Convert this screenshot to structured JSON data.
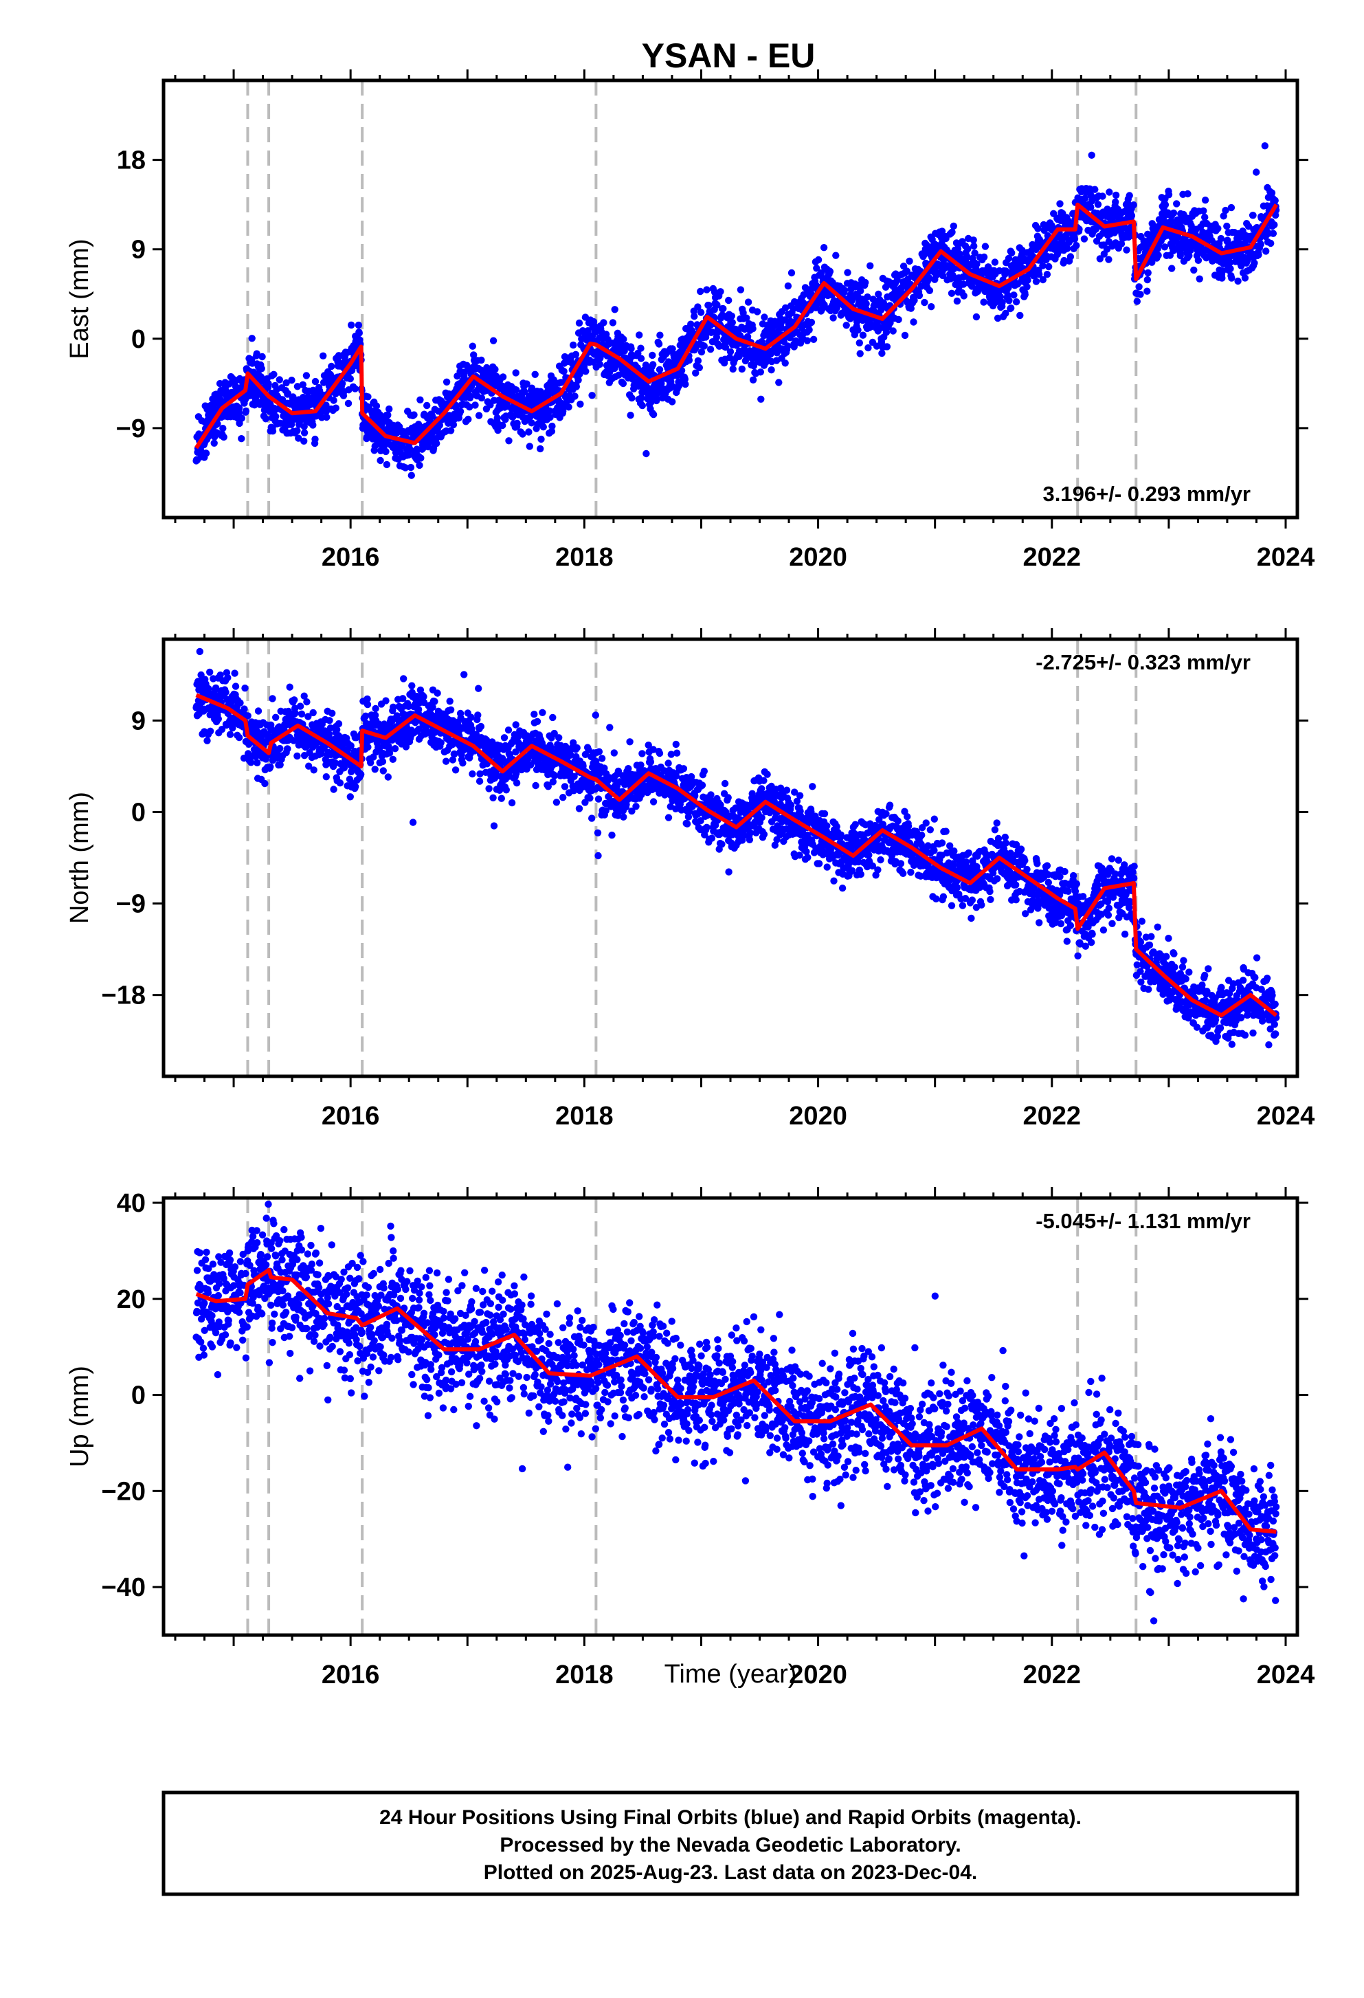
{
  "title": "YSAN - EU",
  "colors": {
    "final_orbits": "#0000ff",
    "model": "#ff0000",
    "offsets": "#bbbbbb",
    "frame": "#000000"
  },
  "footer": {
    "line1": "24 Hour Positions Using Final Orbits (blue) and Rapid Orbits (magenta).",
    "line2": "Processed by the Nevada Geodetic Laboratory.",
    "line3": "Plotted on 2025-Aug-23. Last data on 2023-Dec-04."
  },
  "chart_data": [
    {
      "type": "scatter",
      "title": "YSAN - EU",
      "ylabel": "East (mm)",
      "xlabel": "",
      "rate": "3.196+/- 0.293 mm/yr",
      "xlim": [
        2014.4,
        2024.1
      ],
      "ylim": [
        -18,
        26
      ],
      "xticks": [
        2016,
        2018,
        2020,
        2022,
        2024
      ],
      "yticks": [
        -9,
        0,
        9,
        18
      ],
      "offsets": [
        2015.12,
        2015.3,
        2016.1,
        2018.1,
        2022.22,
        2022.72
      ],
      "series": [
        {
          "name": "Final Orbits",
          "x_range": [
            2014.68,
            2023.92
          ],
          "trend_start": -11.5,
          "trend_rate": 3.196,
          "seasonal_amp": 2.8,
          "noise": 1.5
        }
      ],
      "model": {
        "x": [
          2014.68,
          2014.9,
          2015.1,
          2015.12,
          2015.3,
          2015.5,
          2015.7,
          2016.0,
          2016.09,
          2016.1,
          2016.3,
          2016.55,
          2016.8,
          2017.05,
          2017.3,
          2017.55,
          2017.8,
          2018.05,
          2018.1,
          2018.3,
          2018.55,
          2018.8,
          2019.05,
          2019.3,
          2019.55,
          2019.8,
          2020.05,
          2020.3,
          2020.55,
          2020.8,
          2021.05,
          2021.3,
          2021.55,
          2021.8,
          2022.05,
          2022.2,
          2022.22,
          2022.45,
          2022.7,
          2022.72,
          2022.95,
          2023.2,
          2023.45,
          2023.7,
          2023.92
        ],
        "values": [
          -11.0,
          -7.0,
          -5.2,
          -3.5,
          -5.8,
          -7.5,
          -7.3,
          -2.5,
          -0.8,
          -7.5,
          -9.8,
          -10.5,
          -7.5,
          -3.8,
          -5.8,
          -7.3,
          -5.5,
          -0.5,
          -0.6,
          -2.0,
          -4.3,
          -3.0,
          2.2,
          0.0,
          -1.0,
          1.2,
          5.6,
          3.0,
          2.0,
          5.0,
          8.8,
          6.5,
          5.3,
          7.0,
          11.0,
          11.0,
          13.5,
          11.3,
          11.8,
          6.0,
          11.2,
          10.3,
          8.6,
          9.2,
          13.5
        ]
      }
    },
    {
      "type": "scatter",
      "title": "",
      "ylabel": "North (mm)",
      "xlabel": "",
      "rate": "-2.725+/- 0.323 mm/yr",
      "xlim": [
        2014.4,
        2024.1
      ],
      "ylim": [
        -26,
        17
      ],
      "xticks": [
        2016,
        2018,
        2020,
        2022,
        2024
      ],
      "yticks": [
        -18,
        -9,
        0,
        9
      ],
      "offsets": [
        2015.12,
        2015.3,
        2016.1,
        2018.1,
        2022.22,
        2022.72
      ],
      "series": [
        {
          "name": "Final Orbits",
          "x_range": [
            2014.68,
            2023.92
          ],
          "trend_start": 12.0,
          "trend_rate": -2.725,
          "seasonal_amp": 1.6,
          "noise": 1.4
        }
      ],
      "model": {
        "x": [
          2014.68,
          2014.95,
          2015.1,
          2015.12,
          2015.3,
          2015.32,
          2015.55,
          2015.8,
          2016.09,
          2016.1,
          2016.3,
          2016.55,
          2016.8,
          2017.05,
          2017.3,
          2017.55,
          2017.8,
          2018.05,
          2018.1,
          2018.3,
          2018.55,
          2018.8,
          2019.05,
          2019.3,
          2019.55,
          2019.8,
          2020.05,
          2020.3,
          2020.55,
          2020.8,
          2021.05,
          2021.3,
          2021.55,
          2021.8,
          2022.05,
          2022.2,
          2022.22,
          2022.45,
          2022.7,
          2022.72,
          2022.95,
          2023.2,
          2023.45,
          2023.7,
          2023.92
        ],
        "values": [
          11.5,
          10.2,
          9.0,
          7.5,
          5.8,
          6.8,
          8.5,
          6.8,
          4.5,
          8.0,
          7.3,
          9.5,
          8.0,
          6.5,
          4.0,
          6.5,
          5.0,
          3.4,
          3.2,
          1.2,
          3.8,
          2.3,
          0.2,
          -1.5,
          1.0,
          -0.8,
          -2.5,
          -4.3,
          -1.8,
          -3.5,
          -5.5,
          -7.0,
          -4.5,
          -6.5,
          -8.5,
          -9.5,
          -11.5,
          -7.5,
          -7.0,
          -13.5,
          -16.0,
          -18.5,
          -20.0,
          -18.0,
          -20.0
        ]
      }
    },
    {
      "type": "scatter",
      "title": "",
      "ylabel": "Up (mm)",
      "xlabel": "Time (year)",
      "rate": "-5.045+/- 1.131 mm/yr",
      "xlim": [
        2014.4,
        2024.1
      ],
      "ylim": [
        -50,
        41
      ],
      "xticks": [
        2016,
        2018,
        2020,
        2022,
        2024
      ],
      "yticks": [
        -40,
        -20,
        0,
        20,
        40
      ],
      "offsets": [
        2015.12,
        2015.3,
        2016.1,
        2018.1,
        2022.22,
        2022.72
      ],
      "series": [
        {
          "name": "Final Orbits",
          "x_range": [
            2014.68,
            2023.92
          ],
          "trend_start": 21.0,
          "trend_rate": -5.045,
          "seasonal_amp": 3.0,
          "noise": 6.0
        }
      ],
      "model": {
        "x": [
          2014.68,
          2014.85,
          2015.1,
          2015.12,
          2015.3,
          2015.32,
          2015.5,
          2015.8,
          2016.05,
          2016.1,
          2016.4,
          2016.8,
          2017.1,
          2017.4,
          2017.7,
          2018.05,
          2018.1,
          2018.45,
          2018.8,
          2019.1,
          2019.45,
          2019.8,
          2020.1,
          2020.45,
          2020.8,
          2021.1,
          2021.4,
          2021.7,
          2022.05,
          2022.2,
          2022.22,
          2022.45,
          2022.7,
          2022.72,
          2023.1,
          2023.45,
          2023.7,
          2023.92
        ],
        "values": [
          21.0,
          19.5,
          20.0,
          23.0,
          26.0,
          24.5,
          24.0,
          17.0,
          16.0,
          14.5,
          18.0,
          9.5,
          9.5,
          12.5,
          4.5,
          4.0,
          4.5,
          8.0,
          -0.5,
          -0.5,
          3.0,
          -5.5,
          -5.5,
          -2.0,
          -10.5,
          -10.5,
          -7.0,
          -15.5,
          -15.5,
          -15.0,
          -15.5,
          -12.0,
          -20.0,
          -22.5,
          -23.5,
          -20.0,
          -28.0,
          -28.5
        ]
      }
    }
  ]
}
